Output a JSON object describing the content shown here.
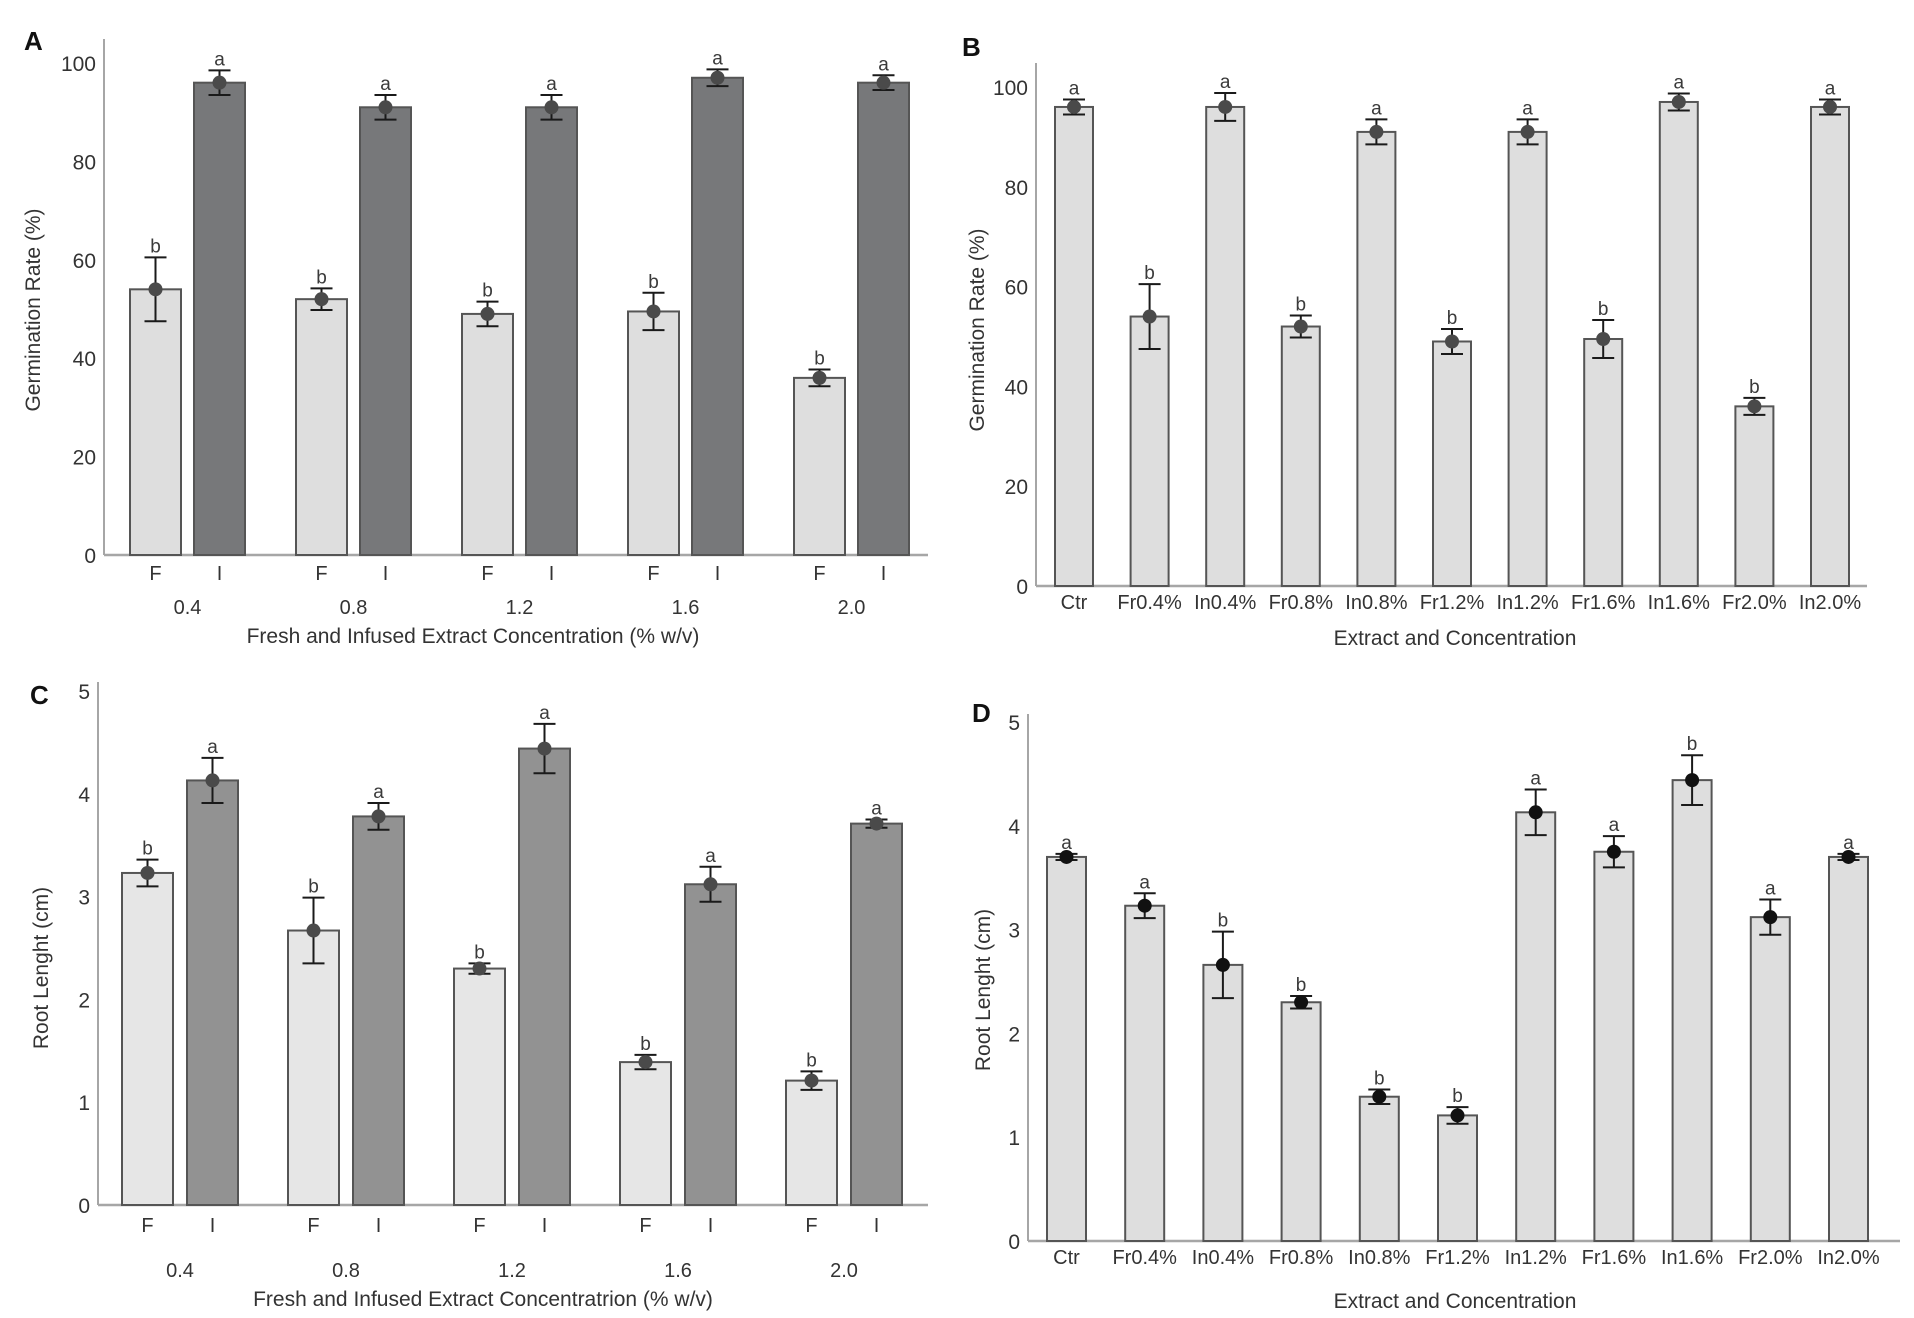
{
  "chart_data": [
    {
      "panel": "A",
      "type": "bar",
      "layout": "grouped",
      "title": "",
      "xlabel": "Fresh and Infused Extract Concentration (% w/v)",
      "ylabel": "Germination Rate (%)",
      "ylim": [
        0,
        100
      ],
      "yticks": [
        0,
        20,
        40,
        60,
        80,
        100
      ],
      "grid": false,
      "legend": "none",
      "categories": [
        "0.4",
        "0.8",
        "1.2",
        "1.6",
        "2.0"
      ],
      "sub_labels": [
        "F",
        "I"
      ],
      "series": [
        {
          "name": "F",
          "fill": "#dedede",
          "values": [
            54,
            52,
            49,
            49.5,
            36
          ],
          "errors": [
            6.5,
            2.2,
            2.5,
            3.8,
            1.7
          ],
          "letters": [
            "b",
            "b",
            "b",
            "b",
            "b"
          ]
        },
        {
          "name": "I",
          "fill": "#77787a",
          "values": [
            96,
            91,
            91,
            97,
            96
          ],
          "errors": [
            2.5,
            2.5,
            2.5,
            1.7,
            1.5
          ],
          "letters": [
            "a",
            "a",
            "a",
            "a",
            "a"
          ]
        }
      ]
    },
    {
      "panel": "B",
      "type": "bar",
      "layout": "single",
      "title": "",
      "xlabel": "Extract and Concentration",
      "ylabel": "Germination Rate (%)",
      "ylim": [
        0,
        100
      ],
      "yticks": [
        0,
        20,
        40,
        60,
        80,
        100
      ],
      "grid": false,
      "legend": "none",
      "categories": [
        "Ctr",
        "Fr0.4%",
        "In0.4%",
        "Fr0.8%",
        "In0.8%",
        "Fr1.2%",
        "In1.2%",
        "Fr1.6%",
        "In1.6%",
        "Fr2.0%",
        "In2.0%"
      ],
      "series": [
        {
          "name": "Germination Rate",
          "fill": "#dedede",
          "values": [
            96,
            54,
            96,
            52,
            91,
            49,
            91,
            49.5,
            97,
            36,
            96
          ],
          "errors": [
            1.5,
            6.5,
            2.8,
            2.2,
            2.5,
            2.5,
            2.5,
            3.8,
            1.7,
            1.7,
            1.5
          ],
          "letters": [
            "a",
            "b",
            "a",
            "b",
            "a",
            "b",
            "a",
            "b",
            "a",
            "b",
            "a"
          ]
        }
      ]
    },
    {
      "panel": "C",
      "type": "bar",
      "layout": "grouped",
      "title": "",
      "xlabel": "Fresh and Infused Extract Concentratrion (% w/v)",
      "ylabel": "Root Lenght (cm)",
      "ylim": [
        0,
        5
      ],
      "yticks": [
        0,
        1,
        2,
        3,
        4,
        5
      ],
      "grid": false,
      "legend": "none",
      "categories": [
        "0.4",
        "0.8",
        "1.2",
        "1.6",
        "2.0"
      ],
      "sub_labels": [
        "F",
        "I"
      ],
      "series": [
        {
          "name": "F",
          "fill": "#e6e6e6",
          "values": [
            3.23,
            2.67,
            2.3,
            1.39,
            1.21
          ],
          "errors": [
            0.13,
            0.32,
            0.05,
            0.07,
            0.09
          ],
          "letters": [
            "b",
            "b",
            "b",
            "b",
            "b"
          ]
        },
        {
          "name": "I",
          "fill": "#929292",
          "values": [
            4.13,
            3.78,
            4.44,
            3.12,
            3.71
          ],
          "errors": [
            0.22,
            0.13,
            0.24,
            0.17,
            0.04
          ],
          "letters": [
            "a",
            "a",
            "a",
            "a",
            "a"
          ]
        }
      ]
    },
    {
      "panel": "D",
      "type": "bar",
      "layout": "single",
      "title": "",
      "xlabel": "Extract and Concentration",
      "ylabel": "Root Lenght (cm)",
      "ylim": [
        0,
        5
      ],
      "yticks": [
        0,
        1,
        2,
        3,
        4,
        5
      ],
      "grid": false,
      "legend": "none",
      "categories": [
        "Ctr",
        "Fr0.4%",
        "In0.4%",
        "Fr0.8%",
        "In0.8%",
        "Fr1.2%",
        "In1.2%",
        "Fr1.6%",
        "In1.6%",
        "Fr2.0%",
        "In2.0%"
      ],
      "series": [
        {
          "name": "Root Lenght",
          "fill": "#dedede",
          "values": [
            3.7,
            3.23,
            2.66,
            2.3,
            1.39,
            1.21,
            4.13,
            3.75,
            4.44,
            3.12,
            3.7
          ],
          "errors": [
            0.03,
            0.12,
            0.32,
            0.06,
            0.07,
            0.08,
            0.22,
            0.15,
            0.24,
            0.17,
            0.03
          ],
          "letters": [
            "a",
            "a",
            "b",
            "b",
            "b",
            "b",
            "a",
            "a",
            "b",
            "a",
            "a"
          ]
        }
      ]
    }
  ],
  "colors": {
    "axis": "#a6a6a6",
    "bar_stroke": "#555555",
    "error_bar": "#1a1a1a",
    "point_gray": "#4a4a4a",
    "point_black": "#111111",
    "text": "#333333"
  }
}
